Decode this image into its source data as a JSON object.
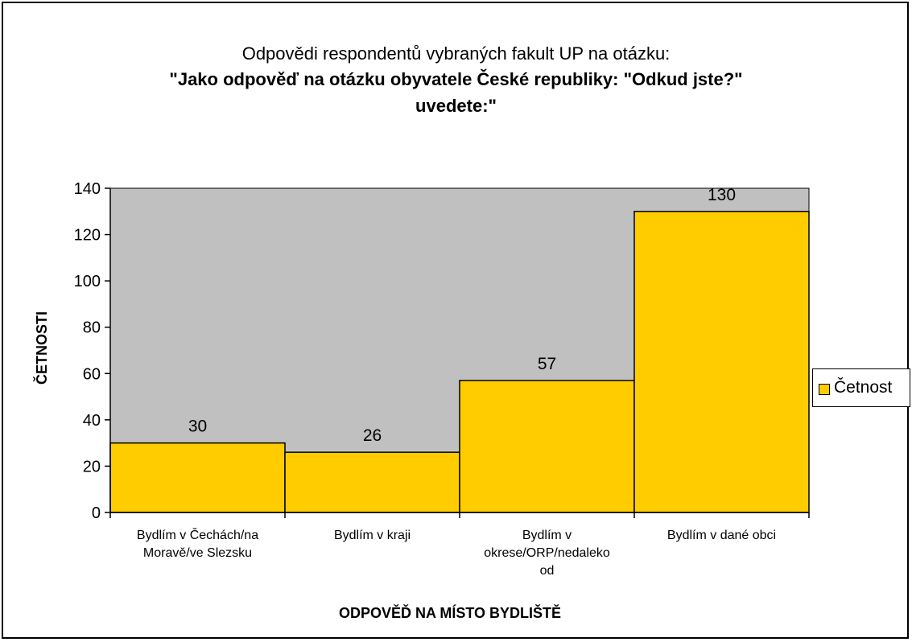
{
  "chart_data": {
    "type": "bar",
    "title": "Odpovědi respondentů vybraných fakult UP na otázku:",
    "subtitle_lines": [
      "\"Jako odpověď na otázku obyvatele České republiky: \"Odkud jste?\"",
      "uvedete:\""
    ],
    "xlabel": "ODPOVĚĎ NA MÍSTO BYDLIŠTĚ",
    "ylabel": "ČETNOSTI",
    "categories": [
      [
        "Bydlím v Čechách/na",
        "Moravě/ve Slezsku"
      ],
      [
        "Bydlím v kraji"
      ],
      [
        "Bydlím v",
        "okrese/ORP/nedaleko",
        "od"
      ],
      [
        "Bydlím v dané obci"
      ]
    ],
    "series": [
      {
        "name": "Četnost",
        "values": [
          30,
          26,
          57,
          130
        ]
      }
    ],
    "data_labels": [
      "30",
      "26",
      "57",
      "130"
    ],
    "ylim": [
      0,
      140
    ],
    "yticks": [
      0,
      20,
      40,
      60,
      80,
      100,
      120,
      140
    ],
    "grid": false,
    "legend": "right",
    "colors": {
      "bar": "#ffcc00",
      "plot_background": "#c0c0c0",
      "outline": "#000000"
    }
  }
}
